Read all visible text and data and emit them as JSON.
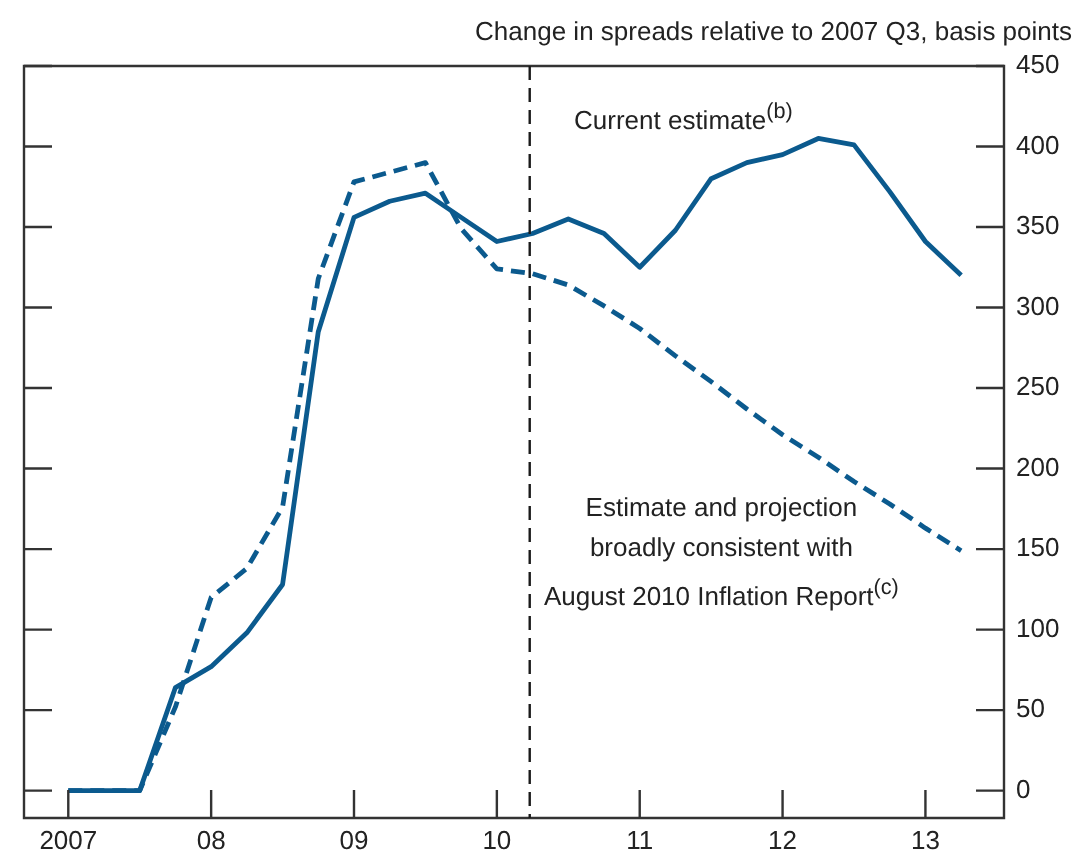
{
  "chart_data": {
    "type": "line",
    "ylabel": "Change in spreads relative to 2007 Q3, basis points",
    "xlim": [
      2006.69,
      2013.55
    ],
    "xticks": [
      2007,
      {
        "value": 2008,
        "label": "08"
      },
      {
        "value": 2009,
        "label": "09"
      },
      {
        "value": 2010,
        "label": "10"
      },
      {
        "value": 2011,
        "label": "11"
      },
      {
        "value": 2012,
        "label": "12"
      },
      {
        "value": 2013,
        "label": "13"
      }
    ],
    "ylim": [
      -17,
      450
    ],
    "yticks": [
      0,
      50,
      100,
      150,
      200,
      250,
      300,
      350,
      400,
      450
    ],
    "grid": false,
    "legend": false,
    "marker": "none",
    "x": [
      2007,
      2007.25,
      2007.5,
      2007.75,
      2008,
      2008.25,
      2008.5,
      2008.75,
      2009,
      2009.25,
      2009.5,
      2009.75,
      2010,
      2010.25,
      2010.5,
      2010.75,
      2011,
      2011.25,
      2011.5,
      2011.75,
      2012,
      2012.25,
      2012.5,
      2012.75,
      2013,
      2013.25
    ],
    "series": [
      {
        "name": "Current estimate$^{(b)}$",
        "color": "#0b5a8e",
        "line_style": "solid",
        "values": [
          0,
          0,
          0,
          64,
          77,
          98,
          128,
          285,
          356,
          366,
          371,
          356,
          341,
          346,
          355,
          346,
          325,
          348,
          380,
          390,
          395,
          405,
          401,
          372,
          341,
          320
        ]
      },
      {
        "name": "Estimate and projection\nbroadly consistent with\nAugust 2010 Inflation Report$^{(c)}$",
        "color": "#0b5a8e",
        "line_style": "dashed",
        "values": [
          0,
          0,
          0,
          52,
          120,
          138,
          176,
          318,
          378,
          384,
          390,
          349,
          324,
          321,
          314,
          301,
          287,
          270,
          254,
          237,
          221,
          207,
          192,
          178,
          163,
          149
        ]
      }
    ],
    "ref_lines": [
      {
        "axis": "x",
        "value": 2010.23,
        "color": "#1a1a1a",
        "line_style": "dashed"
      }
    ]
  }
}
